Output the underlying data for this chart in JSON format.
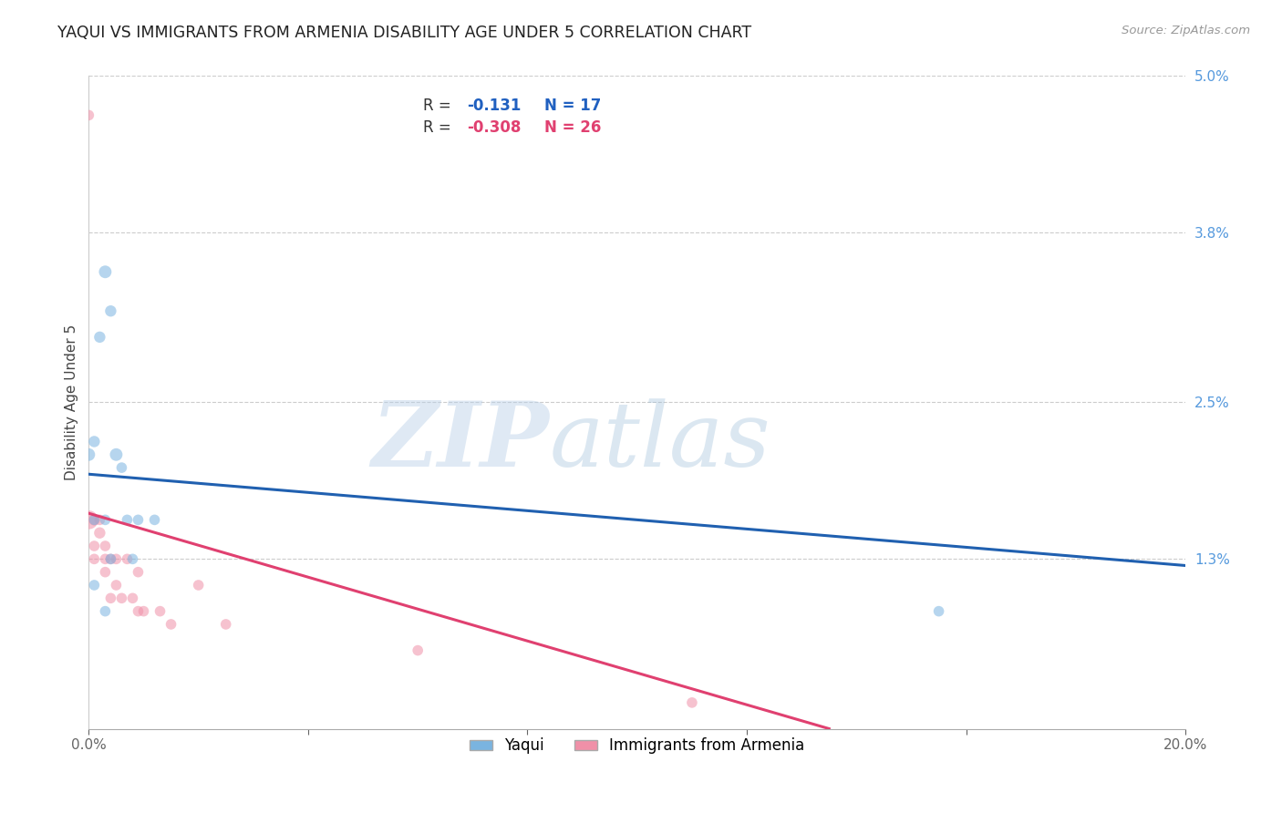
{
  "title": "YAQUI VS IMMIGRANTS FROM ARMENIA DISABILITY AGE UNDER 5 CORRELATION CHART",
  "source": "Source: ZipAtlas.com",
  "ylabel": "Disability Age Under 5",
  "xlim": [
    0.0,
    0.2
  ],
  "ylim": [
    0.0,
    0.05
  ],
  "xticks": [
    0.0,
    0.04,
    0.08,
    0.12,
    0.16,
    0.2
  ],
  "xtick_labels": [
    "0.0%",
    "",
    "",
    "",
    "",
    "20.0%"
  ],
  "ytick_labels_right": [
    "5.0%",
    "3.8%",
    "2.5%",
    "1.3%"
  ],
  "ytick_vals_right": [
    0.05,
    0.038,
    0.025,
    0.013
  ],
  "watermark_zip": "ZIP",
  "watermark_atlas": "atlas",
  "legend_r1": "R = ",
  "legend_v1": "-0.131",
  "legend_n1": "N = 17",
  "legend_r2": "R = ",
  "legend_v2": "-0.308",
  "legend_n2": "N = 26",
  "series_yaqui": {
    "name": "Yaqui",
    "color": "#7ab4e0",
    "x": [
      0.001,
      0.002,
      0.003,
      0.004,
      0.005,
      0.006,
      0.009,
      0.012,
      0.001,
      0.003,
      0.004,
      0.007,
      0.155,
      0.0,
      0.001,
      0.003,
      0.008
    ],
    "y": [
      0.022,
      0.03,
      0.035,
      0.032,
      0.021,
      0.02,
      0.016,
      0.016,
      0.016,
      0.016,
      0.013,
      0.016,
      0.009,
      0.021,
      0.011,
      0.009,
      0.013
    ],
    "sizes": [
      80,
      80,
      100,
      80,
      100,
      70,
      70,
      70,
      70,
      70,
      70,
      70,
      70,
      100,
      70,
      70,
      70
    ]
  },
  "series_armenia": {
    "name": "Immigrants from Armenia",
    "color": "#f090a8",
    "x": [
      0.0,
      0.0,
      0.001,
      0.001,
      0.001,
      0.002,
      0.002,
      0.003,
      0.003,
      0.003,
      0.004,
      0.004,
      0.005,
      0.005,
      0.006,
      0.007,
      0.008,
      0.009,
      0.009,
      0.01,
      0.013,
      0.015,
      0.02,
      0.025,
      0.06,
      0.11
    ],
    "y": [
      0.047,
      0.016,
      0.016,
      0.014,
      0.013,
      0.015,
      0.016,
      0.014,
      0.013,
      0.012,
      0.013,
      0.01,
      0.013,
      0.011,
      0.01,
      0.013,
      0.01,
      0.009,
      0.012,
      0.009,
      0.009,
      0.008,
      0.011,
      0.008,
      0.006,
      0.002
    ],
    "sizes": [
      70,
      220,
      80,
      70,
      70,
      80,
      70,
      70,
      70,
      70,
      70,
      70,
      70,
      70,
      70,
      70,
      70,
      70,
      70,
      70,
      70,
      70,
      70,
      70,
      70,
      70
    ]
  },
  "trendline_yaqui": {
    "x_start": 0.0,
    "y_start": 0.0195,
    "x_end": 0.2,
    "y_end": 0.0125,
    "color": "#2060b0",
    "linewidth": 2.2
  },
  "trendline_armenia": {
    "x_start": 0.0,
    "y_start": 0.0165,
    "x_end": 0.135,
    "y_end": 0.0,
    "color": "#e04070",
    "linewidth": 2.2
  },
  "background_color": "#ffffff",
  "grid_color": "#cccccc",
  "title_color": "#222222",
  "right_axis_color": "#5599dd",
  "figsize": [
    14.06,
    8.92
  ],
  "dpi": 100
}
